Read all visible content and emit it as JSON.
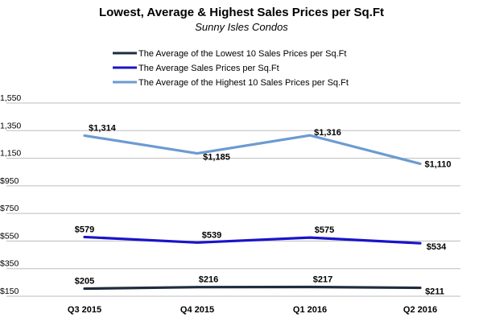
{
  "chart_data": {
    "type": "line",
    "title": "Lowest, Average & Highest Sales Prices per Sq.Ft",
    "subtitle": "Sunny Isles Condos",
    "categories": [
      "Q3 2015",
      "Q4 2015",
      "Q1 2016",
      "Q2 2016"
    ],
    "y_ticks": [
      "$150",
      "$350",
      "$550",
      "$750",
      "$950",
      "1,150",
      "1,350",
      "1,550"
    ],
    "ylim": [
      150,
      1550
    ],
    "grid": true,
    "legend_position": "top",
    "series": [
      {
        "name": "The Average of the Lowest 10 Sales Prices per Sq.Ft",
        "color": "#1f2d3d",
        "values": [
          205,
          216,
          217,
          211
        ],
        "labels": [
          "$205",
          "$216",
          "$217",
          "$211"
        ]
      },
      {
        "name": "The Average Sales Prices per Sq.Ft",
        "color": "#1a14c8",
        "values": [
          579,
          539,
          575,
          534
        ],
        "labels": [
          "$579",
          "$539",
          "$575",
          "$534"
        ]
      },
      {
        "name": "The Average of the Highest 10 Sales Prices per Sq.Ft",
        "color": "#6b9bd2",
        "values": [
          1314,
          1185,
          1316,
          1110
        ],
        "labels": [
          "$1,314",
          "$1,185",
          "$1,316",
          "$1,110"
        ]
      }
    ]
  }
}
